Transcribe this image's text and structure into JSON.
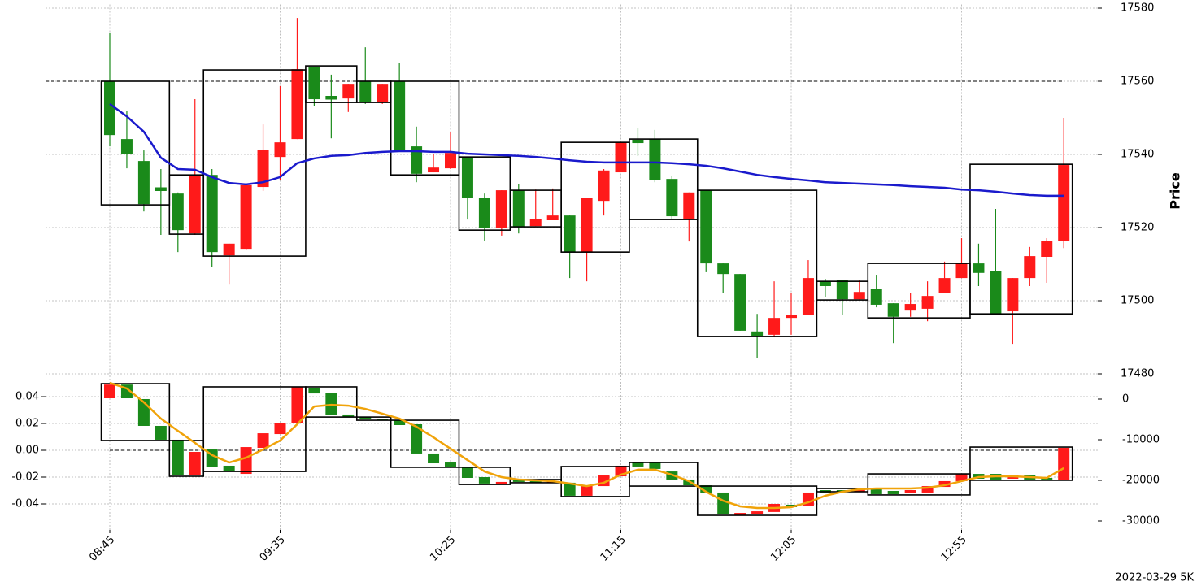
{
  "chart_data": [
    {
      "type": "candlestick",
      "ylabel": "Price",
      "open": [
        17560,
        17544.2,
        17538.2,
        17531,
        17529.3,
        17518.4,
        17534.4,
        17512.4,
        17514.2,
        17531.1,
        17539.3,
        17544.2,
        17564,
        17556,
        17555.3,
        17560,
        17554.4,
        17560,
        17542.2,
        17535.1,
        17536.2,
        17539.3,
        17528,
        17520,
        17530.2,
        17520.4,
        17522,
        17523.3,
        17513.3,
        17527.3,
        17535.1,
        17544,
        17544.2,
        17533.3,
        17522.2,
        17530.2,
        17510.2,
        17507.3,
        17491.6,
        17490.7,
        17495.3,
        17496.2,
        17505.3,
        17505.6,
        17500.4,
        17503.3,
        17499.3,
        17497.3,
        17497.8,
        17502.2,
        17506.2,
        17510.2,
        17508.2,
        17497.1,
        17506.2,
        17512,
        17516.4
      ],
      "high": [
        17573.3,
        17552,
        17541.1,
        17536,
        17529.6,
        17555.1,
        17536,
        17515.6,
        17531.6,
        17548.2,
        17558.7,
        17577.3,
        17564,
        17561.8,
        17559.3,
        17569.3,
        17559.3,
        17565.1,
        17547.6,
        17540,
        17546.2,
        17539.3,
        17529.3,
        17530.2,
        17532,
        17530.4,
        17530.7,
        17523.3,
        17528.2,
        17536,
        17543.3,
        17547.3,
        17546.7,
        17534,
        17529.6,
        17530.2,
        17510.2,
        17507.3,
        17496.4,
        17505.3,
        17502,
        17511.1,
        17506,
        17505.6,
        17505.6,
        17507.1,
        17499.3,
        17502.2,
        17505.3,
        17510.7,
        17517.1,
        17515.6,
        17525.1,
        17506.2,
        17514.7,
        17517.1,
        17550
      ],
      "low": [
        17542.2,
        17536.2,
        17524.4,
        17518,
        17513.3,
        17518,
        17509.3,
        17504.4,
        17514,
        17530,
        17532.9,
        17544.2,
        17553.3,
        17544.4,
        17551.6,
        17553.8,
        17553.8,
        17541.1,
        17532.4,
        17535.1,
        17536,
        17522.2,
        17516.4,
        17517.8,
        17518.4,
        17520.4,
        17522,
        17506.2,
        17505.3,
        17523.3,
        17535.1,
        17539.6,
        17532.4,
        17522.2,
        17516.2,
        17507.8,
        17502.2,
        17491.8,
        17484.4,
        17490,
        17490.7,
        17496.2,
        17500.9,
        17496,
        17500.4,
        17498.2,
        17488.4,
        17495.6,
        17494.4,
        17502.2,
        17506.2,
        17504,
        17496.4,
        17488.2,
        17504,
        17504.9,
        17514.4
      ],
      "close": [
        17545.3,
        17540.2,
        17526.4,
        17530,
        17519.3,
        17534.2,
        17513.3,
        17515.6,
        17531.6,
        17541.3,
        17543.3,
        17563.3,
        17555.1,
        17555,
        17559.3,
        17554.4,
        17559.3,
        17541.1,
        17534.7,
        17536.4,
        17540.4,
        17528.2,
        17519.8,
        17530.2,
        17520.2,
        17522.4,
        17523.3,
        17513.3,
        17528.2,
        17535.6,
        17543.3,
        17543.1,
        17533.1,
        17523.1,
        17529.6,
        17510.2,
        17507.3,
        17491.8,
        17490.4,
        17495.3,
        17496.2,
        17506.2,
        17504,
        17500.4,
        17502.4,
        17498.9,
        17495.6,
        17499.1,
        17501.3,
        17506.2,
        17510.2,
        17507.6,
        17496.4,
        17506.2,
        17512.2,
        17516.4,
        17537.1
      ],
      "up_color": "#ff1a1a",
      "down_color": "#1a8a1a",
      "lines": [
        {
          "color": "#1a1acc",
          "values": [
            17553.8,
            17550.4,
            17546.2,
            17539.1,
            17536,
            17535.8,
            17533.8,
            17532.2,
            17531.8,
            17532.4,
            17533.8,
            17537.6,
            17538.9,
            17539.6,
            17539.8,
            17540.4,
            17540.7,
            17540.9,
            17540.9,
            17540.7,
            17540.7,
            17540.2,
            17540,
            17539.8,
            17539.6,
            17539.3,
            17538.9,
            17538.4,
            17538,
            17537.8,
            17537.8,
            17537.8,
            17537.8,
            17537.6,
            17537.3,
            17536.9,
            17536.2,
            17535.3,
            17534.4,
            17533.8,
            17533.3,
            17532.9,
            17532.4,
            17532.2,
            17532,
            17531.8,
            17531.6,
            17531.3,
            17531.1,
            17530.9,
            17530.4,
            17530.2,
            17529.8,
            17529.3,
            17528.9,
            17528.7,
            17528.7
          ]
        }
      ],
      "boxes": [
        {
          "from": 0,
          "to": 3,
          "top": 17560,
          "bottom": 17526.2
        },
        {
          "from": 4,
          "to": 5,
          "top": 17534.4,
          "bottom": 17518.2
        },
        {
          "from": 6,
          "to": 11,
          "top": 17563.1,
          "bottom": 17512.2
        },
        {
          "from": 12,
          "to": 14,
          "top": 17564.2,
          "bottom": 17554.2
        },
        {
          "from": 15,
          "to": 16,
          "top": 17560,
          "bottom": 17554.2
        },
        {
          "from": 17,
          "to": 20,
          "top": 17560,
          "bottom": 17534.4
        },
        {
          "from": 21,
          "to": 23,
          "top": 17539.3,
          "bottom": 17519.3
        },
        {
          "from": 24,
          "to": 26,
          "top": 17530.2,
          "bottom": 17520.2
        },
        {
          "from": 27,
          "to": 30,
          "top": 17543.3,
          "bottom": 17513.3
        },
        {
          "from": 31,
          "to": 34,
          "top": 17544.2,
          "bottom": 17522.2
        },
        {
          "from": 35,
          "to": 41,
          "top": 17530.2,
          "bottom": 17490.2
        },
        {
          "from": 42,
          "to": 44,
          "top": 17505.3,
          "bottom": 17500.2
        },
        {
          "from": 45,
          "to": 50,
          "top": 17510.2,
          "bottom": 17495.3
        },
        {
          "from": 51,
          "to": 56,
          "top": 17537.3,
          "bottom": 17496.4
        }
      ],
      "hline": 17560,
      "ylim": [
        17480,
        17581
      ],
      "yticks": [
        17480,
        17500,
        17520,
        17540,
        17560,
        17580
      ],
      "grid": true
    },
    {
      "type": "candlestick",
      "annotation": "2022-03-29 5K",
      "categories": [
        "08:45",
        null,
        null,
        null,
        null,
        null,
        null,
        null,
        null,
        null,
        "09:35",
        null,
        null,
        null,
        null,
        null,
        null,
        null,
        null,
        null,
        "10:25",
        null,
        null,
        null,
        null,
        null,
        null,
        null,
        null,
        null,
        "11:15",
        null,
        null,
        null,
        null,
        null,
        null,
        null,
        null,
        null,
        "12:05",
        null,
        null,
        null,
        null,
        null,
        null,
        null,
        null,
        null,
        "12:55",
        null,
        null,
        null,
        null,
        null,
        null
      ],
      "open": [
        0.0388,
        0.049,
        0.0382,
        0.0182,
        0.0079,
        -0.0188,
        0.0006,
        -0.0115,
        -0.0176,
        0.0018,
        0.0121,
        0.0206,
        0.0467,
        0.043,
        0.0267,
        0.0248,
        0.0236,
        0.0224,
        0.0194,
        -0.0024,
        -0.0091,
        -0.0127,
        -0.02,
        -0.0255,
        -0.0218,
        -0.023,
        -0.0242,
        -0.0242,
        -0.0339,
        -0.0267,
        -0.0194,
        -0.0091,
        -0.0091,
        -0.0158,
        -0.0218,
        -0.0261,
        -0.0315,
        -0.0485,
        -0.0479,
        -0.046,
        -0.0406,
        -0.0412,
        -0.0297,
        -0.0297,
        -0.0309,
        -0.0279,
        -0.0303,
        -0.0321,
        -0.0315,
        -0.0273,
        -0.023,
        -0.0176,
        -0.0176,
        -0.0212,
        -0.0182,
        -0.0206,
        -0.0224
      ],
      "close": [
        0.049,
        0.0388,
        0.0182,
        0.0079,
        -0.0188,
        -0.0012,
        -0.0127,
        -0.0152,
        0.0024,
        0.0127,
        0.0206,
        0.0473,
        0.0424,
        0.0261,
        0.0248,
        0.023,
        0.0224,
        0.0188,
        -0.0024,
        -0.0097,
        -0.0127,
        -0.0206,
        -0.0248,
        -0.0236,
        -0.0236,
        -0.0242,
        -0.023,
        -0.0339,
        -0.0261,
        -0.0188,
        -0.0115,
        -0.0121,
        -0.0139,
        -0.0218,
        -0.0261,
        -0.0315,
        -0.0479,
        -0.0467,
        -0.0455,
        -0.04,
        -0.0424,
        -0.0315,
        -0.0315,
        -0.0309,
        -0.0285,
        -0.0327,
        -0.0327,
        -0.0297,
        -0.0267,
        -0.023,
        -0.0176,
        -0.0212,
        -0.0218,
        -0.0182,
        -0.0218,
        -0.0218,
        0.0018
      ],
      "up_color": "#ff1a1a",
      "down_color": "#1a8a1a",
      "lines": [
        {
          "color": "#f0a30a",
          "values": [
            0.0503,
            0.0461,
            0.0358,
            0.0236,
            0.0145,
            0.0055,
            -0.0036,
            -0.0091,
            -0.0055,
            0.0006,
            0.0073,
            0.0194,
            0.0327,
            0.0339,
            0.0333,
            0.0309,
            0.0273,
            0.0236,
            0.0176,
            0.0097,
            0.0012,
            -0.0073,
            -0.0158,
            -0.02,
            -0.0218,
            -0.0224,
            -0.023,
            -0.0248,
            -0.0267,
            -0.0242,
            -0.0182,
            -0.0145,
            -0.0145,
            -0.0182,
            -0.023,
            -0.0309,
            -0.0376,
            -0.0418,
            -0.043,
            -0.043,
            -0.0424,
            -0.0388,
            -0.0339,
            -0.0309,
            -0.0291,
            -0.0285,
            -0.0285,
            -0.0285,
            -0.0279,
            -0.0261,
            -0.023,
            -0.02,
            -0.0194,
            -0.0194,
            -0.02,
            -0.0206,
            -0.0133
          ]
        }
      ],
      "boxes": [
        {
          "from": 0,
          "to": 3,
          "top": 0.0497,
          "bottom": 0.0073
        },
        {
          "from": 4,
          "to": 5,
          "top": 0.0073,
          "bottom": -0.0194
        },
        {
          "from": 6,
          "to": 11,
          "top": 0.0473,
          "bottom": -0.0158
        },
        {
          "from": 12,
          "to": 14,
          "top": 0.0473,
          "bottom": 0.0248
        },
        {
          "from": 15,
          "to": 16,
          "top": 0.0248,
          "bottom": 0.0224
        },
        {
          "from": 17,
          "to": 20,
          "top": 0.0224,
          "bottom": -0.0127
        },
        {
          "from": 21,
          "to": 23,
          "top": -0.0127,
          "bottom": -0.0255
        },
        {
          "from": 24,
          "to": 26,
          "top": -0.0218,
          "bottom": -0.0242
        },
        {
          "from": 27,
          "to": 30,
          "top": -0.0121,
          "bottom": -0.0345
        },
        {
          "from": 31,
          "to": 34,
          "top": -0.0091,
          "bottom": -0.0267
        },
        {
          "from": 35,
          "to": 41,
          "top": -0.0267,
          "bottom": -0.0485
        },
        {
          "from": 42,
          "to": 44,
          "top": -0.0285,
          "bottom": -0.0309
        },
        {
          "from": 45,
          "to": 50,
          "top": -0.0176,
          "bottom": -0.0333
        },
        {
          "from": 51,
          "to": 56,
          "top": 0.0024,
          "bottom": -0.0224
        }
      ],
      "hline": 0,
      "ylim": [
        -0.0594,
        0.0582
      ],
      "yticks": [
        -0.04,
        -0.02,
        {
          "value": 0,
          "label": "0.00"
        },
        0.02,
        0.04
      ],
      "y2lim": [
        -32200,
        6600
      ],
      "y2ticks": [
        -30000,
        -20000,
        -10000,
        0
      ],
      "grid": true
    }
  ]
}
